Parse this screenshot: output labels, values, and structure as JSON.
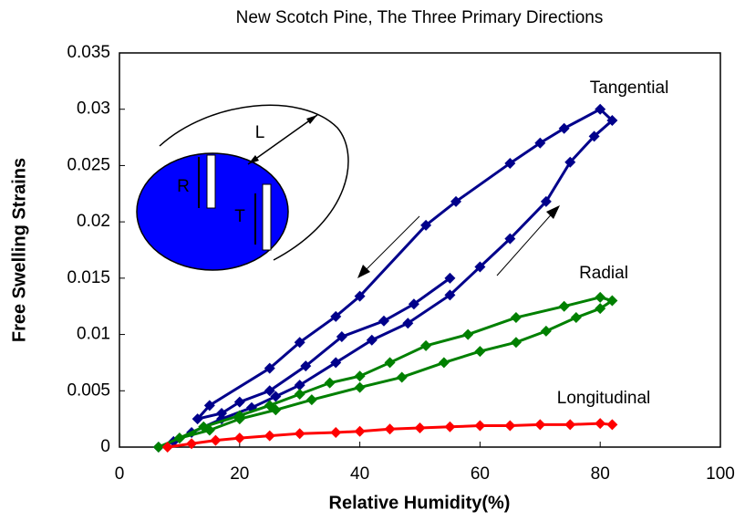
{
  "chart_data": {
    "type": "line",
    "title": "New Scotch Pine, The Three Primary Directions",
    "x_label": "Relative Humidity(%)",
    "y_label": "Free Swelling Strains",
    "xlim": [
      0,
      100
    ],
    "xticks": [
      0,
      20,
      40,
      60,
      80,
      100
    ],
    "ylim": [
      0,
      0.035
    ],
    "yticks": [
      0,
      0.005,
      0.01,
      0.015,
      0.02,
      0.025,
      0.03,
      0.035
    ],
    "inset_labels": [
      "L",
      "R",
      "T"
    ],
    "series": [
      {
        "name": "Tangential",
        "color": "#00008b",
        "x": [
          6.5,
          9,
          12,
          17,
          22,
          26,
          30,
          36,
          42,
          48,
          55,
          60,
          65,
          71,
          75,
          79,
          82,
          80,
          74,
          70,
          65,
          56,
          51,
          40,
          36,
          30,
          25,
          15,
          13,
          17,
          20,
          25,
          31,
          37,
          44,
          49,
          55
        ],
        "values": [
          0,
          0.0005,
          0.0013,
          0.0025,
          0.0035,
          0.0045,
          0.0055,
          0.0075,
          0.0095,
          0.011,
          0.0135,
          0.016,
          0.0185,
          0.0218,
          0.0253,
          0.0276,
          0.029,
          0.03,
          0.0283,
          0.027,
          0.0252,
          0.0218,
          0.0197,
          0.0134,
          0.0116,
          0.0093,
          0.007,
          0.0037,
          0.0025,
          0.003,
          0.004,
          0.005,
          0.0072,
          0.0098,
          0.0112,
          0.0127,
          0.015
        ]
      },
      {
        "name": "Radial",
        "color": "#008000",
        "x": [
          6.5,
          10,
          15,
          20,
          26,
          32,
          40,
          47,
          54,
          60,
          66,
          71,
          76,
          80,
          82,
          80,
          74,
          66,
          58,
          51,
          45,
          40,
          35,
          30,
          25,
          20,
          14,
          10
        ],
        "values": [
          0,
          0.0008,
          0.0015,
          0.0025,
          0.0033,
          0.0042,
          0.0053,
          0.0062,
          0.0075,
          0.0085,
          0.0093,
          0.0103,
          0.0115,
          0.0123,
          0.013,
          0.0133,
          0.0125,
          0.0115,
          0.01,
          0.009,
          0.0075,
          0.0063,
          0.0057,
          0.0047,
          0.0037,
          0.0028,
          0.0018,
          0.0008
        ]
      },
      {
        "name": "Longitudinal",
        "color": "#ff0000",
        "x": [
          8,
          12,
          16,
          20,
          25,
          30,
          36,
          40,
          45,
          50,
          55,
          60,
          65,
          70,
          75,
          80,
          82
        ],
        "values": [
          0,
          0.0003,
          0.0006,
          0.0008,
          0.001,
          0.0012,
          0.0013,
          0.0014,
          0.0016,
          0.0017,
          0.0018,
          0.0019,
          0.0019,
          0.002,
          0.002,
          0.0021,
          0.002
        ]
      }
    ]
  }
}
